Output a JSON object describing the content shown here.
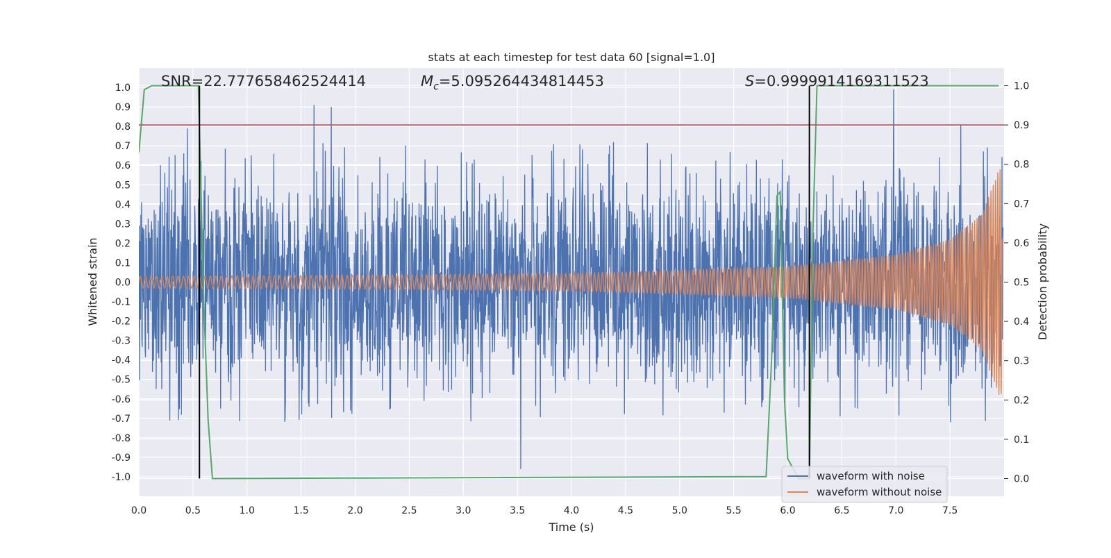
{
  "chart_data": {
    "type": "line",
    "title": "stats at each timestep for test data 60 [signal=1.0]",
    "xlabel": "Time (s)",
    "ylabel_left": "Whitened strain",
    "ylabel_right": "Detection probability",
    "xlim": [
      0.0,
      8.0
    ],
    "ylim_left": [
      -1.1,
      1.1
    ],
    "ylim_right": [
      -0.045,
      1.045
    ],
    "x_ticks": [
      "0.0",
      "0.5",
      "1.0",
      "1.5",
      "2.0",
      "2.5",
      "3.0",
      "3.5",
      "4.0",
      "4.5",
      "5.0",
      "5.5",
      "6.0",
      "6.5",
      "7.0",
      "7.5"
    ],
    "y_ticks_left": [
      "1.0",
      "0.9",
      "0.8",
      "0.7",
      "0.6",
      "0.5",
      "0.4",
      "0.3",
      "0.2",
      "0.1",
      "0.0",
      "-0.1",
      "-0.2",
      "-0.3",
      "-0.4",
      "-0.5",
      "-0.6",
      "-0.7",
      "-0.8",
      "-0.9",
      "-1.0"
    ],
    "y_ticks_right": [
      "1.0",
      "0.9",
      "0.8",
      "0.7",
      "0.6",
      "0.5",
      "0.4",
      "0.3",
      "0.2",
      "0.1",
      "0.0"
    ],
    "grid": true,
    "legend_placement": "lower-right",
    "annotations": {
      "snr": "SNR=22.777658462524414",
      "mc_symbol": "M",
      "mc_subscript": "c",
      "mc_value": "=5.095264434814453",
      "s_symbol": "S",
      "s_value": "=0.9999914169311523"
    },
    "threshold": {
      "axis": "right",
      "value": 0.9,
      "color": "#c44e52"
    },
    "vertical_markers": {
      "x": [
        0.56,
        6.2
      ],
      "color": "#000000"
    },
    "series": [
      {
        "name": "waveform with noise",
        "axis": "left",
        "color": "#4c72b0",
        "kind": "noise",
        "envelope_mean": 0.45,
        "peaks": [
          [
            0.45,
            0.79
          ],
          [
            1.62,
            0.91
          ],
          [
            1.78,
            0.9
          ],
          [
            3.53,
            -0.96
          ],
          [
            6.98,
            0.99
          ],
          [
            7.6,
            0.81
          ]
        ]
      },
      {
        "name": "waveform without noise",
        "axis": "left",
        "color": "#dd8452",
        "kind": "chirp",
        "amplitude_points": [
          [
            0.0,
            0.03
          ],
          [
            2.0,
            0.035
          ],
          [
            4.0,
            0.045
          ],
          [
            5.0,
            0.06
          ],
          [
            6.0,
            0.08
          ],
          [
            7.0,
            0.14
          ],
          [
            7.5,
            0.22
          ],
          [
            7.8,
            0.35
          ],
          [
            7.95,
            0.58
          ]
        ]
      },
      {
        "name": "",
        "axis": "right",
        "color": "#55a868",
        "x": [
          0.0,
          0.05,
          0.12,
          0.2,
          0.3,
          0.4,
          0.5,
          0.55,
          0.6,
          0.64,
          0.68,
          5.8,
          5.85,
          5.9,
          5.93,
          5.97,
          6.0,
          6.1,
          6.2,
          6.23,
          6.27,
          6.35,
          6.5,
          7.0,
          7.5,
          7.95
        ],
        "y": [
          0.83,
          0.99,
          1.0,
          1.0,
          1.0,
          1.0,
          1.0,
          1.0,
          0.45,
          0.15,
          0.0,
          0.005,
          0.3,
          0.72,
          0.73,
          0.2,
          0.05,
          0.0,
          0.0,
          0.6,
          1.0,
          1.0,
          1.0,
          1.0,
          1.0,
          1.0
        ]
      }
    ]
  }
}
